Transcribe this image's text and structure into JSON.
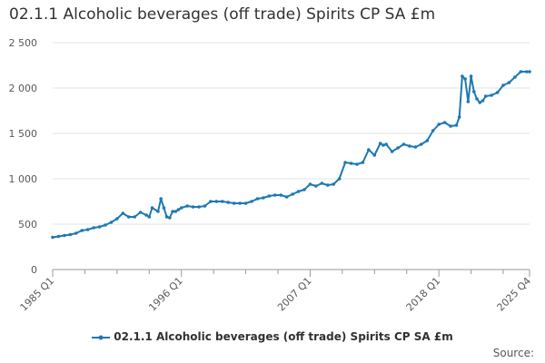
{
  "colors": {
    "series": "#1e78b4",
    "grid": "#e3e3e3",
    "axis": "#9a9a9a",
    "text": "#595959"
  },
  "source_label": "Source:",
  "chart_data": {
    "type": "line",
    "title": "02.1.1 Alcoholic beverages (off trade) Spirits CP SA £m",
    "xlabel": "",
    "ylabel": "",
    "ylim": [
      0,
      2500
    ],
    "yticks": [
      0,
      500,
      1000,
      1500,
      2000,
      2500
    ],
    "ytick_labels": [
      "0",
      "500",
      "1 000",
      "1 500",
      "2 000",
      "2 500"
    ],
    "xlim": [
      1985.0,
      2025.75
    ],
    "xticks": [
      1985.0,
      1996.0,
      2007.0,
      2018.0,
      2025.75
    ],
    "xtick_labels": [
      "1985 Q1",
      "1996 Q1",
      "2007 Q1",
      "2018 Q1",
      "2025 Q4"
    ],
    "x_minor_ticks": [
      1987.75,
      1990.5,
      1993.25,
      1998.75,
      2001.5,
      2004.25,
      2009.75,
      2012.5,
      2015.25,
      2020.75,
      2023.5
    ],
    "grid": "horizontal",
    "legend_position": "bottom",
    "series": [
      {
        "name": "02.1.1 Alcoholic beverages (off trade) Spirits CP SA £m",
        "x": [
          1985.0,
          1985.5,
          1986.0,
          1986.5,
          1987.0,
          1987.5,
          1988.0,
          1988.5,
          1989.0,
          1989.5,
          1990.0,
          1990.5,
          1991.0,
          1991.5,
          1992.0,
          1992.5,
          1993.0,
          1993.25,
          1993.5,
          1994.0,
          1994.25,
          1994.5,
          1994.75,
          1995.0,
          1995.25,
          1995.5,
          1995.75,
          1996.0,
          1996.5,
          1997.0,
          1997.5,
          1998.0,
          1998.5,
          1999.0,
          1999.5,
          2000.0,
          2000.5,
          2001.0,
          2001.5,
          2002.0,
          2002.5,
          2003.0,
          2003.5,
          2004.0,
          2004.5,
          2005.0,
          2005.5,
          2006.0,
          2006.5,
          2007.0,
          2007.5,
          2008.0,
          2008.5,
          2009.0,
          2009.5,
          2010.0,
          2010.5,
          2011.0,
          2011.5,
          2012.0,
          2012.5,
          2013.0,
          2013.25,
          2013.5,
          2014.0,
          2014.5,
          2015.0,
          2015.5,
          2016.0,
          2016.5,
          2017.0,
          2017.5,
          2018.0,
          2018.5,
          2019.0,
          2019.5,
          2019.75,
          2020.0,
          2020.25,
          2020.5,
          2020.75,
          2021.0,
          2021.25,
          2021.5,
          2021.75,
          2022.0,
          2022.5,
          2023.0,
          2023.5,
          2024.0,
          2024.5,
          2025.0,
          2025.5,
          2025.75
        ],
        "values": [
          355,
          365,
          375,
          385,
          400,
          430,
          440,
          460,
          470,
          490,
          520,
          560,
          620,
          580,
          580,
          630,
          600,
          580,
          680,
          640,
          780,
          680,
          580,
          570,
          640,
          640,
          660,
          680,
          700,
          690,
          690,
          700,
          750,
          750,
          750,
          740,
          730,
          730,
          730,
          750,
          780,
          790,
          810,
          820,
          820,
          800,
          830,
          860,
          880,
          940,
          920,
          950,
          930,
          940,
          1000,
          1180,
          1170,
          1160,
          1180,
          1320,
          1260,
          1390,
          1370,
          1380,
          1300,
          1340,
          1380,
          1360,
          1350,
          1380,
          1420,
          1530,
          1600,
          1620,
          1580,
          1590,
          1680,
          2130,
          2100,
          1850,
          2130,
          1960,
          1880,
          1840,
          1860,
          1910,
          1920,
          1950,
          2030,
          2060,
          2120,
          2180,
          2180,
          2180
        ]
      }
    ]
  }
}
